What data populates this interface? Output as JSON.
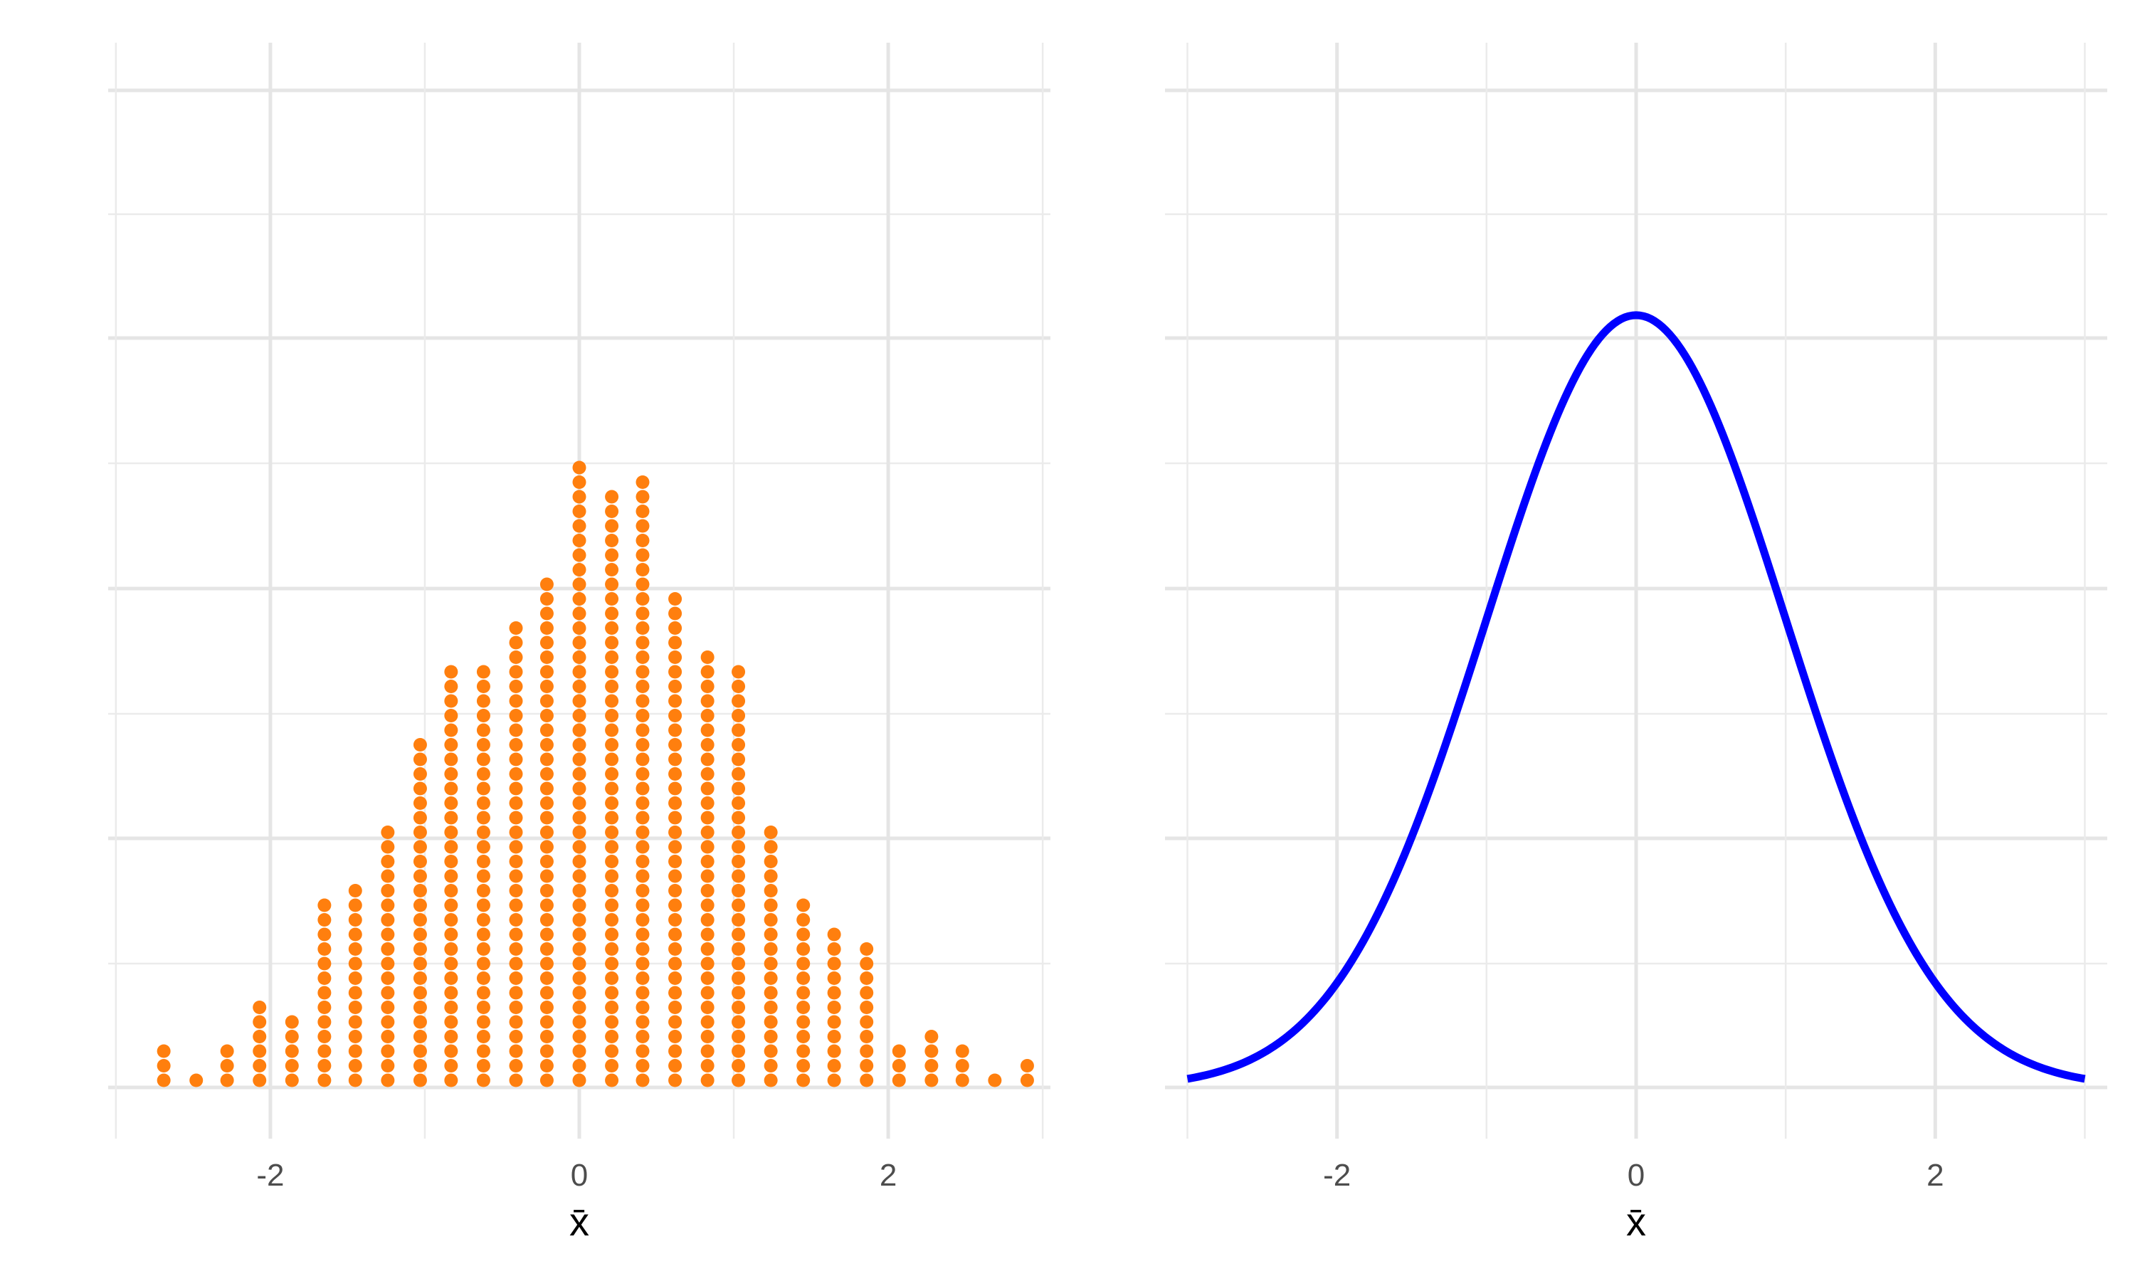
{
  "chart_data": [
    {
      "type": "scatter",
      "subtype": "dotplot",
      "xlabel": "x̄",
      "ylabel": "",
      "xlim": [
        -3.05,
        3.05
      ],
      "x_ticks": [
        -2,
        0,
        2
      ],
      "x_tick_labels": [
        "-2",
        "0",
        "2"
      ],
      "grid": true,
      "colors": {
        "dots": "#ff7f0e"
      },
      "bins": [
        {
          "x": -2.69,
          "count": 3
        },
        {
          "x": -2.48,
          "count": 1
        },
        {
          "x": -2.28,
          "count": 3
        },
        {
          "x": -2.07,
          "count": 6
        },
        {
          "x": -1.86,
          "count": 5
        },
        {
          "x": -1.65,
          "count": 13
        },
        {
          "x": -1.45,
          "count": 14
        },
        {
          "x": -1.24,
          "count": 18
        },
        {
          "x": -1.03,
          "count": 24
        },
        {
          "x": -0.83,
          "count": 29
        },
        {
          "x": -0.62,
          "count": 29
        },
        {
          "x": -0.41,
          "count": 32
        },
        {
          "x": -0.21,
          "count": 35
        },
        {
          "x": 0.0,
          "count": 43
        },
        {
          "x": 0.21,
          "count": 41
        },
        {
          "x": 0.41,
          "count": 42
        },
        {
          "x": 0.62,
          "count": 34
        },
        {
          "x": 0.83,
          "count": 30
        },
        {
          "x": 1.03,
          "count": 29
        },
        {
          "x": 1.24,
          "count": 18
        },
        {
          "x": 1.45,
          "count": 13
        },
        {
          "x": 1.65,
          "count": 11
        },
        {
          "x": 1.86,
          "count": 10
        },
        {
          "x": 2.07,
          "count": 3
        },
        {
          "x": 2.28,
          "count": 4
        },
        {
          "x": 2.48,
          "count": 3
        },
        {
          "x": 2.69,
          "count": 1
        },
        {
          "x": 2.9,
          "count": 2
        }
      ]
    },
    {
      "type": "line",
      "xlabel": "x̄",
      "ylabel": "",
      "xlim": [
        -3.0,
        3.0
      ],
      "ylim": [
        0,
        0.45
      ],
      "x_ticks": [
        -2,
        0,
        2
      ],
      "x_tick_labels": [
        "-2",
        "0",
        "2"
      ],
      "grid": true,
      "colors": {
        "line": "#0000ff"
      },
      "series": [
        {
          "x": [
            -3.0,
            -2.75,
            -2.5,
            -2.25,
            -2.0,
            -1.75,
            -1.5,
            -1.25,
            -1.0,
            -0.75,
            -0.5,
            -0.25,
            0.0,
            0.25,
            0.5,
            0.75,
            1.0,
            1.25,
            1.5,
            1.75,
            2.0,
            2.25,
            2.5,
            2.75,
            3.0
          ],
          "y": [
            0.0044,
            0.0091,
            0.0175,
            0.0317,
            0.054,
            0.0863,
            0.1295,
            0.1826,
            0.242,
            0.3011,
            0.3521,
            0.3867,
            0.3989,
            0.3867,
            0.3521,
            0.3011,
            0.242,
            0.1826,
            0.1295,
            0.0863,
            0.054,
            0.0317,
            0.0175,
            0.0091,
            0.0044
          ]
        }
      ]
    }
  ]
}
